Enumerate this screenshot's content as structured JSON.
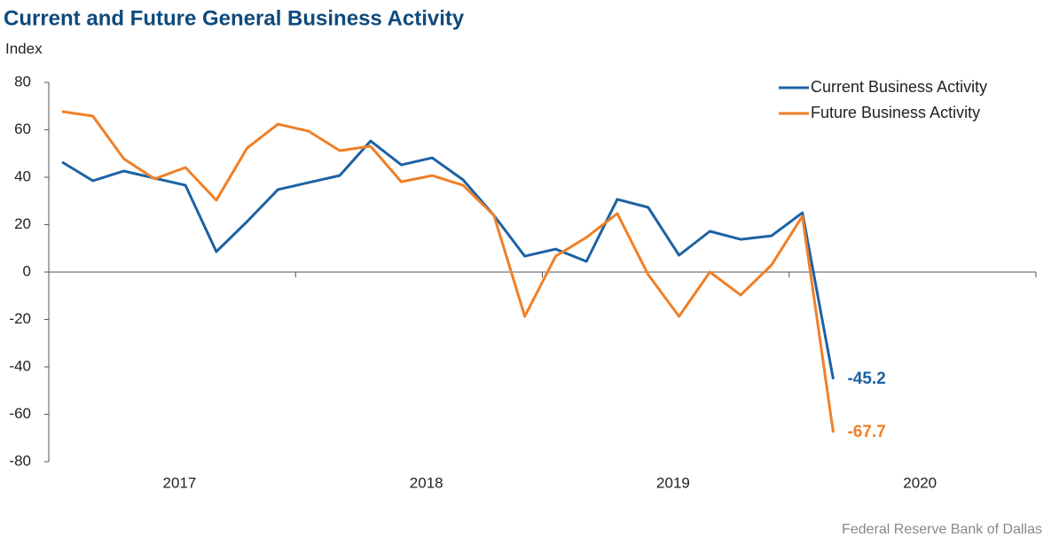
{
  "chart_data": {
    "type": "line",
    "title": "Current and Future General Business Activity",
    "y_label": "Index",
    "source": "Federal Reserve Bank of Dallas",
    "categories": [
      null,
      null,
      null,
      null,
      null,
      null,
      null,
      null,
      null,
      null,
      null,
      null,
      null,
      null,
      null,
      null,
      null,
      null,
      null,
      null,
      null,
      null,
      null,
      null,
      null,
      null
    ],
    "year_labels": [
      "2017",
      "2018",
      "2019",
      "2020"
    ],
    "ylim": [
      -80,
      80
    ],
    "yticks": [
      -80,
      -60,
      -40,
      -20,
      0,
      20,
      40,
      60,
      80
    ],
    "legend": "top-right",
    "series": [
      {
        "name": "Current Business Activity",
        "color": "#1c62a3",
        "values": [
          46.4,
          38.5,
          42.6,
          39.6,
          36.6,
          8.6,
          21.3,
          34.8,
          37.8,
          40.7,
          55.3,
          45.2,
          48.2,
          38.9,
          23.9,
          6.7,
          9.7,
          4.5,
          30.7,
          27.3,
          7.1,
          17.2,
          13.8,
          15.3,
          25.0,
          -45.2
        ]
      },
      {
        "name": "Future Business Activity",
        "color": "#f07f26",
        "values": [
          67.7,
          65.8,
          47.8,
          39.3,
          44.1,
          30.3,
          52.3,
          62.4,
          59.4,
          51.2,
          53.1,
          38.1,
          40.7,
          36.6,
          23.9,
          -18.7,
          6.7,
          14.6,
          24.7,
          -1.1,
          -18.7,
          0,
          -9.7,
          3.0,
          23.6,
          -67.7
        ]
      }
    ]
  }
}
